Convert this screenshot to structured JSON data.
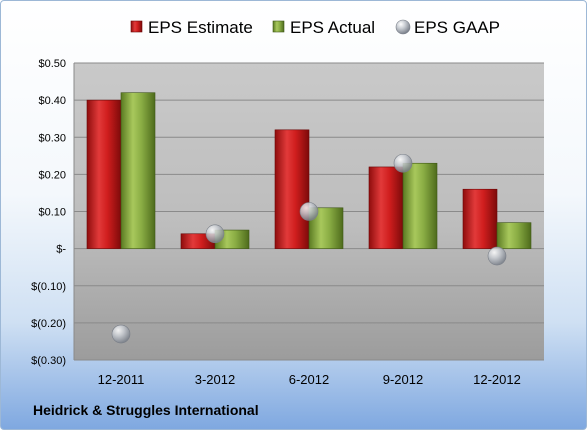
{
  "chart_data": {
    "type": "bar",
    "categories": [
      "12-2011",
      "3-2012",
      "6-2012",
      "9-2012",
      "12-2012"
    ],
    "series": [
      {
        "name": "EPS Estimate",
        "kind": "bar",
        "color": "#cc1a1a",
        "values": [
          0.4,
          0.04,
          0.32,
          0.22,
          0.16
        ]
      },
      {
        "name": "EPS Actual",
        "kind": "bar",
        "color": "#7ea23a",
        "values": [
          0.42,
          0.05,
          0.11,
          0.23,
          0.07
        ]
      },
      {
        "name": "EPS GAAP",
        "kind": "marker",
        "color": "#b8bcc4",
        "values": [
          -0.23,
          0.04,
          0.1,
          0.23,
          -0.02
        ]
      }
    ],
    "ylim": [
      -0.3,
      0.5
    ],
    "yticks": [
      {
        "value": 0.5,
        "label": "$0.50"
      },
      {
        "value": 0.4,
        "label": "$0.40"
      },
      {
        "value": 0.3,
        "label": "$0.30"
      },
      {
        "value": 0.2,
        "label": "$0.20"
      },
      {
        "value": 0.1,
        "label": "$0.10"
      },
      {
        "value": 0.0,
        "label": "$-"
      },
      {
        "value": -0.1,
        "label": "$(0.10)"
      },
      {
        "value": -0.2,
        "label": "$(0.20)"
      },
      {
        "value": -0.3,
        "label": "$(0.30)"
      }
    ],
    "grid": true,
    "legend": "top",
    "title": "",
    "xlabel": "",
    "ylabel": ""
  },
  "footer": {
    "company": "Heidrick & Struggles International"
  }
}
